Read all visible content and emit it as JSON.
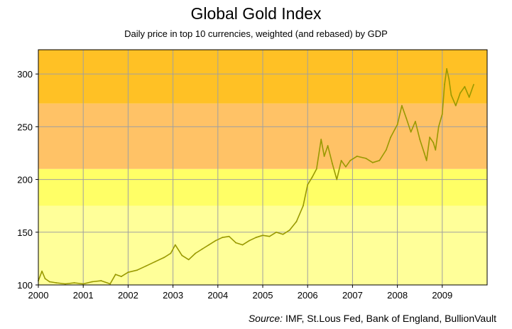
{
  "chart_data": {
    "type": "line",
    "title": "Global Gold Index",
    "subtitle": "Daily price in top 10 currencies, weighted (and rebased) by GDP",
    "source_label": "Source:",
    "source_text": "IMF, St.Lous Fed, Bank of England, BullionVault",
    "xlabel": "",
    "ylabel": "",
    "xlim": [
      2000,
      2010.0
    ],
    "ylim": [
      100,
      323
    ],
    "y_ticks": [
      100,
      150,
      200,
      250,
      300
    ],
    "x_ticks": [
      "2000",
      "2001",
      "2002",
      "2003",
      "2004",
      "2005",
      "2006",
      "2007",
      "2008",
      "2009"
    ],
    "grid": true,
    "bands": [
      {
        "from": 100,
        "to": 175,
        "color": "#ffff99"
      },
      {
        "from": 175,
        "to": 210,
        "color": "#ffff66"
      },
      {
        "from": 210,
        "to": 272,
        "color": "#ffc266"
      },
      {
        "from": 272,
        "to": 323,
        "color": "#ffc125"
      }
    ],
    "line_color": "#999900",
    "series": [
      {
        "name": "Global Gold Index",
        "x": [
          2000.0,
          2000.08,
          2000.15,
          2000.25,
          2000.4,
          2000.6,
          2000.8,
          2001.0,
          2001.2,
          2001.4,
          2001.6,
          2001.72,
          2001.85,
          2002.0,
          2002.2,
          2002.4,
          2002.6,
          2002.8,
          2002.95,
          2003.05,
          2003.2,
          2003.35,
          2003.5,
          2003.65,
          2003.8,
          2003.95,
          2004.1,
          2004.25,
          2004.4,
          2004.55,
          2004.7,
          2004.85,
          2005.0,
          2005.15,
          2005.3,
          2005.45,
          2005.6,
          2005.75,
          2005.9,
          2006.0,
          2006.1,
          2006.2,
          2006.3,
          2006.37,
          2006.45,
          2006.55,
          2006.65,
          2006.75,
          2006.85,
          2006.95,
          2007.1,
          2007.3,
          2007.45,
          2007.6,
          2007.75,
          2007.85,
          2007.95,
          2008.0,
          2008.1,
          2008.2,
          2008.3,
          2008.4,
          2008.5,
          2008.6,
          2008.65,
          2008.72,
          2008.8,
          2008.85,
          2008.92,
          2009.0,
          2009.05,
          2009.1,
          2009.15,
          2009.2,
          2009.3,
          2009.4,
          2009.5,
          2009.6,
          2009.7
        ],
        "values": [
          104,
          113,
          106,
          103,
          102,
          101,
          102,
          101,
          103,
          104,
          101,
          110,
          108,
          112,
          114,
          118,
          122,
          126,
          130,
          138,
          128,
          124,
          130,
          134,
          138,
          142,
          145,
          146,
          140,
          138,
          142,
          145,
          147,
          146,
          150,
          148,
          152,
          160,
          175,
          195,
          202,
          210,
          238,
          222,
          232,
          215,
          200,
          218,
          212,
          218,
          222,
          220,
          216,
          218,
          228,
          240,
          248,
          252,
          270,
          258,
          245,
          255,
          238,
          225,
          218,
          240,
          235,
          228,
          250,
          262,
          290,
          305,
          295,
          280,
          270,
          282,
          288,
          278,
          290
        ]
      }
    ]
  }
}
